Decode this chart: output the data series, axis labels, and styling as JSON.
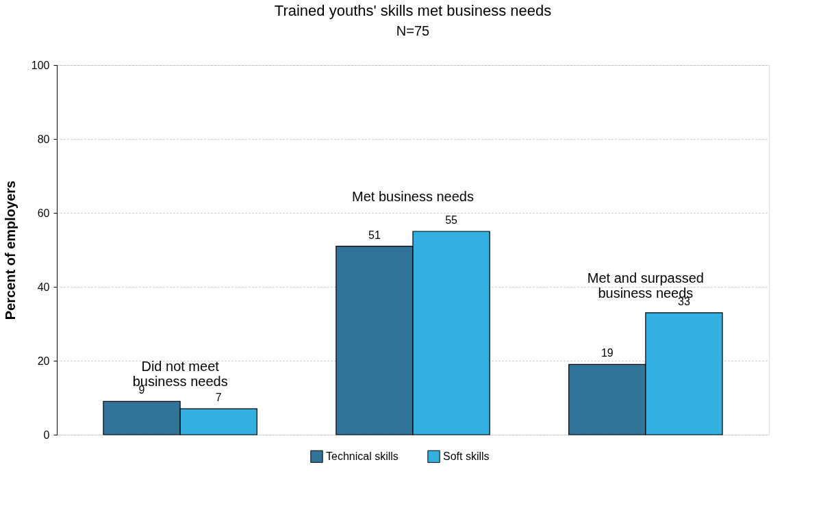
{
  "chart_data": {
    "type": "bar",
    "title": "Trained youths' skills met business needs",
    "subtitle": "N=75",
    "ylabel": "Percent of employers",
    "categories": [
      "Did not meet\nbusiness needs",
      "Met business needs",
      "Met and surpassed\nbusiness needs"
    ],
    "series": [
      {
        "name": "Technical skills",
        "color": "#33739a",
        "values": [
          9,
          51,
          19
        ]
      },
      {
        "name": "Soft skills",
        "color": "#33b0e0",
        "values": [
          7,
          55,
          33
        ]
      }
    ],
    "ylim": [
      0,
      100
    ],
    "yticks": [
      0,
      20,
      40,
      60,
      80,
      100
    ],
    "grid": "y",
    "legend": "bottom",
    "data_labels": true,
    "tick_labels": "y"
  }
}
